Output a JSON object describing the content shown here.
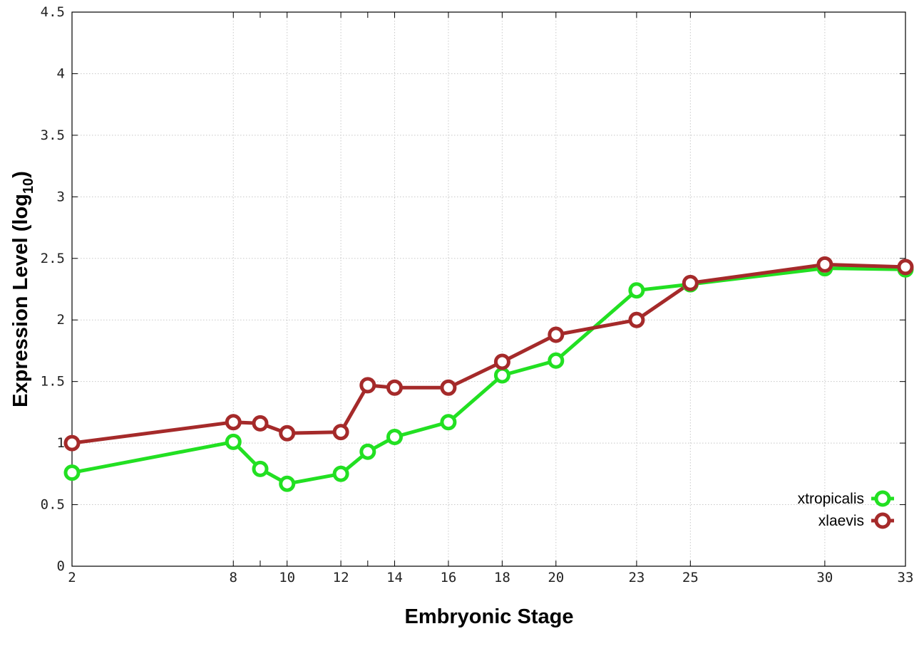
{
  "chart_data": {
    "type": "line",
    "xlabel": "Embryonic Stage",
    "ylabel_main": "Expression Level (log",
    "ylabel_sub": "10",
    "ylabel_close": ")",
    "xlim": [
      2,
      33
    ],
    "ylim": [
      0,
      4.5
    ],
    "x_ticks": [
      2,
      8,
      10,
      12,
      14,
      16,
      18,
      20,
      23,
      25,
      30,
      33
    ],
    "x_ticks_between": [
      9,
      13
    ],
    "y_ticks": [
      0,
      0.5,
      1,
      1.5,
      2,
      2.5,
      3,
      3.5,
      4,
      4.5
    ],
    "y_tick_labels": [
      "0",
      "0.5",
      "1",
      "1.5",
      "2",
      "2.5",
      "3",
      "3.5",
      "4",
      "4.5"
    ],
    "grid": true,
    "legend_position": "bottom-right",
    "series": [
      {
        "name": "xtropicalis",
        "color": "#22e022",
        "x": [
          2,
          8,
          9,
          10,
          12,
          13,
          14,
          16,
          18,
          20,
          23,
          25,
          30,
          33
        ],
        "y": [
          0.76,
          1.01,
          0.79,
          0.67,
          0.75,
          0.93,
          1.05,
          1.17,
          1.55,
          1.67,
          2.24,
          2.29,
          2.42,
          2.41
        ]
      },
      {
        "name": "xlaevis",
        "color": "#a52a2a",
        "x": [
          2,
          8,
          9,
          10,
          12,
          13,
          14,
          16,
          18,
          20,
          23,
          25,
          30,
          33
        ],
        "y": [
          1.0,
          1.17,
          1.16,
          1.08,
          1.09,
          1.47,
          1.45,
          1.45,
          1.66,
          1.88,
          2.0,
          2.3,
          2.45,
          2.43
        ]
      }
    ]
  }
}
